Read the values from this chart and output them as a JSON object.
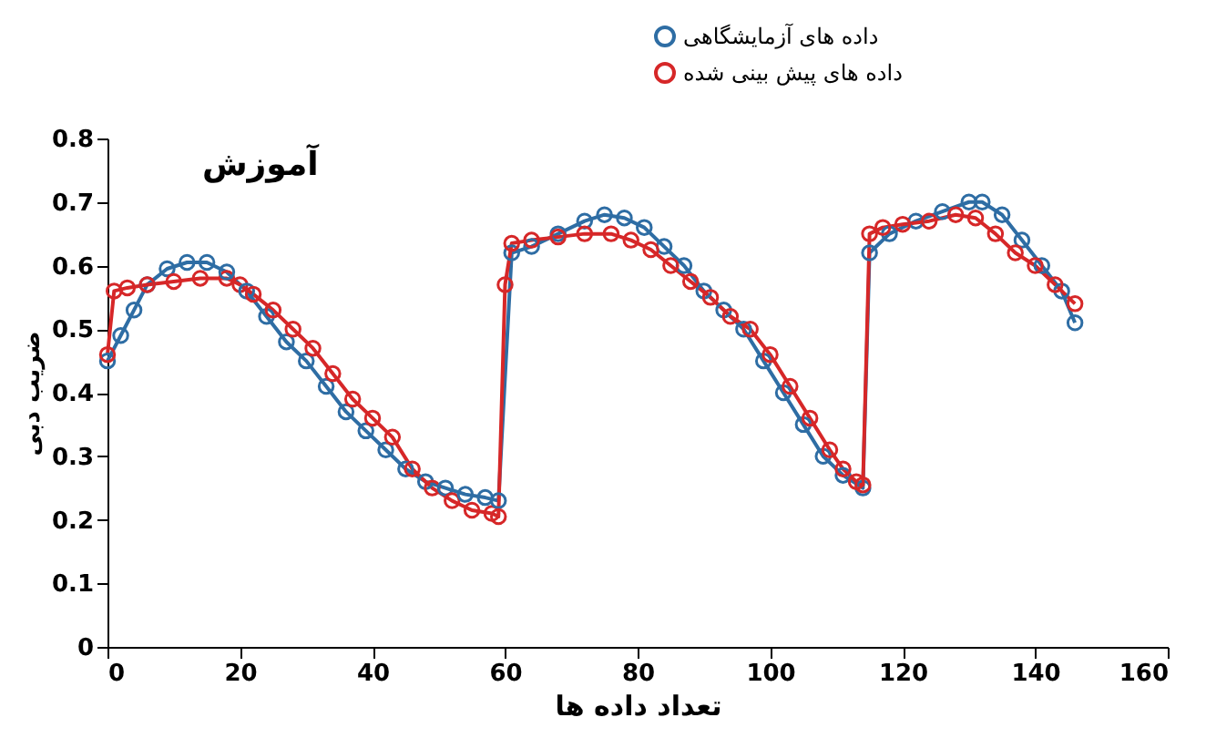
{
  "chart_data": {
    "type": "line",
    "title": "آموزش",
    "xlabel": "تعداد داده ها",
    "ylabel": "ضریب دبی",
    "xlim": [
      0,
      160
    ],
    "xticks": [
      0,
      20,
      40,
      60,
      80,
      100,
      120,
      140,
      160
    ],
    "ylim": [
      0,
      0.8
    ],
    "yticks": [
      0,
      0.1,
      0.2,
      0.3,
      0.4,
      0.5,
      0.6,
      0.7,
      0.8
    ],
    "grid": false,
    "legend": "top right",
    "marker": "circle",
    "line_style": "solid",
    "series": [
      {
        "name": "داده های آزمایشگاهی",
        "color": "#2e6da4",
        "x": [
          0,
          2,
          4,
          6,
          9,
          12,
          15,
          18,
          21,
          24,
          27,
          30,
          33,
          36,
          39,
          42,
          45,
          48,
          51,
          54,
          57,
          59,
          61,
          64,
          68,
          72,
          75,
          78,
          81,
          84,
          87,
          90,
          93,
          96,
          99,
          102,
          105,
          108,
          111,
          114,
          115,
          118,
          122,
          126,
          130,
          132,
          135,
          138,
          141,
          144,
          146
        ],
        "values": [
          0.45,
          0.49,
          0.53,
          0.57,
          0.595,
          0.605,
          0.605,
          0.59,
          0.56,
          0.52,
          0.48,
          0.45,
          0.41,
          0.37,
          0.34,
          0.31,
          0.28,
          0.26,
          0.25,
          0.24,
          0.235,
          0.23,
          0.62,
          0.63,
          0.65,
          0.67,
          0.68,
          0.675,
          0.66,
          0.63,
          0.6,
          0.56,
          0.53,
          0.5,
          0.45,
          0.4,
          0.35,
          0.3,
          0.27,
          0.25,
          0.62,
          0.65,
          0.67,
          0.685,
          0.7,
          0.7,
          0.68,
          0.64,
          0.6,
          0.56,
          0.51
        ]
      },
      {
        "name": "داده های پیش بینی شده",
        "color": "#d62728",
        "x": [
          0,
          1,
          3,
          6,
          10,
          14,
          18,
          20,
          22,
          25,
          28,
          31,
          34,
          37,
          40,
          43,
          46,
          49,
          52,
          55,
          58,
          59,
          60,
          61,
          64,
          68,
          72,
          76,
          79,
          82,
          85,
          88,
          91,
          94,
          97,
          100,
          103,
          106,
          109,
          111,
          113,
          114,
          115,
          117,
          120,
          124,
          128,
          131,
          134,
          137,
          140,
          143,
          146
        ],
        "values": [
          0.46,
          0.56,
          0.565,
          0.57,
          0.575,
          0.58,
          0.58,
          0.57,
          0.555,
          0.53,
          0.5,
          0.47,
          0.43,
          0.39,
          0.36,
          0.33,
          0.28,
          0.25,
          0.23,
          0.215,
          0.21,
          0.205,
          0.57,
          0.635,
          0.64,
          0.645,
          0.65,
          0.65,
          0.64,
          0.625,
          0.6,
          0.575,
          0.55,
          0.52,
          0.5,
          0.46,
          0.41,
          0.36,
          0.31,
          0.28,
          0.26,
          0.255,
          0.65,
          0.66,
          0.665,
          0.67,
          0.68,
          0.675,
          0.65,
          0.62,
          0.6,
          0.57,
          0.54
        ]
      }
    ]
  }
}
